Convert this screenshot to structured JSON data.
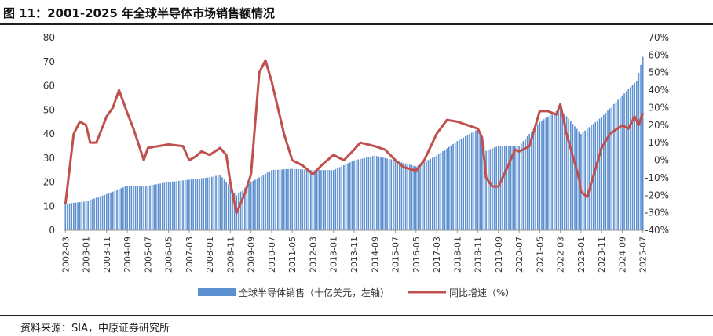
{
  "title": "图 11：2001-2025 年全球半导体市场销售额情况",
  "source": "资料来源：SIA，中原证券研究所",
  "colors": {
    "bars": "#5b8fcf",
    "line": "#c0504d"
  },
  "chart_data": {
    "type": "bar+line",
    "x_tick_labels": [
      "2002-03",
      "2003-01",
      "2003-11",
      "2004-09",
      "2005-07",
      "2006-05",
      "2007-03",
      "2008-01",
      "2008-11",
      "2009-09",
      "2010-07",
      "2011-05",
      "2012-03",
      "2013-01",
      "2013-11",
      "2014-09",
      "2015-07",
      "2016-05",
      "2017-03",
      "2018-01",
      "2018-11",
      "2019-09",
      "2020-07",
      "2021-05",
      "2022-03",
      "2023-01",
      "2023-11",
      "2024-09",
      "2025-07"
    ],
    "y_left": {
      "ticks": [
        "0",
        "10",
        "20",
        "30",
        "40",
        "50",
        "60",
        "70",
        "80"
      ],
      "range": [
        0,
        80
      ]
    },
    "y_right": {
      "ticks": [
        "-40%",
        "-30%",
        "-20%",
        "-10%",
        "0%",
        "10%",
        "20%",
        "30%",
        "40%",
        "50%",
        "60%",
        "70%"
      ],
      "range": [
        -40,
        70
      ]
    },
    "legend_position": "bottom",
    "series": [
      {
        "name": "全球半导体销售（十亿美元，左轴）",
        "type": "bar",
        "axis": "left",
        "anchors": [
          [
            "2002-03",
            11
          ],
          [
            "2003-01",
            12
          ],
          [
            "2003-11",
            15
          ],
          [
            "2004-09",
            18.5
          ],
          [
            "2005-07",
            18.5
          ],
          [
            "2006-05",
            20
          ],
          [
            "2007-03",
            21
          ],
          [
            "2008-01",
            22
          ],
          [
            "2008-06",
            23
          ],
          [
            "2008-11",
            18
          ],
          [
            "2009-02",
            14.5
          ],
          [
            "2009-09",
            20
          ],
          [
            "2010-07",
            25
          ],
          [
            "2011-05",
            25.5
          ],
          [
            "2012-03",
            25
          ],
          [
            "2013-01",
            25
          ],
          [
            "2013-11",
            29
          ],
          [
            "2014-09",
            31
          ],
          [
            "2015-07",
            29
          ],
          [
            "2016-05",
            26.5
          ],
          [
            "2017-03",
            31
          ],
          [
            "2018-01",
            37
          ],
          [
            "2018-11",
            42
          ],
          [
            "2019-03",
            33
          ],
          [
            "2019-09",
            35
          ],
          [
            "2020-07",
            35
          ],
          [
            "2021-05",
            45
          ],
          [
            "2022-03",
            50.5
          ],
          [
            "2023-01",
            40
          ],
          [
            "2023-11",
            47
          ],
          [
            "2024-09",
            56
          ],
          [
            "2025-04",
            62
          ],
          [
            "2025-07",
            72
          ]
        ]
      },
      {
        "name": "同比增速（%）",
        "type": "line",
        "axis": "right",
        "anchors": [
          [
            "2002-03",
            -25
          ],
          [
            "2002-07",
            15
          ],
          [
            "2002-10",
            22
          ],
          [
            "2003-01",
            20
          ],
          [
            "2003-03",
            10
          ],
          [
            "2003-06",
            10
          ],
          [
            "2003-11",
            25
          ],
          [
            "2004-02",
            30
          ],
          [
            "2004-05",
            40
          ],
          [
            "2004-09",
            27
          ],
          [
            "2004-12",
            18
          ],
          [
            "2005-05",
            0
          ],
          [
            "2005-07",
            7
          ],
          [
            "2006-05",
            9
          ],
          [
            "2006-12",
            8
          ],
          [
            "2007-03",
            0
          ],
          [
            "2007-06",
            2
          ],
          [
            "2007-09",
            5
          ],
          [
            "2008-01",
            3
          ],
          [
            "2008-06",
            7
          ],
          [
            "2008-09",
            3
          ],
          [
            "2008-11",
            -13
          ],
          [
            "2009-02",
            -30
          ],
          [
            "2009-06",
            -19
          ],
          [
            "2009-09",
            -8
          ],
          [
            "2010-01",
            50
          ],
          [
            "2010-04",
            57
          ],
          [
            "2010-07",
            45
          ],
          [
            "2011-01",
            15
          ],
          [
            "2011-05",
            0
          ],
          [
            "2011-10",
            -3
          ],
          [
            "2012-03",
            -8
          ],
          [
            "2012-08",
            -2
          ],
          [
            "2013-01",
            3
          ],
          [
            "2013-06",
            0
          ],
          [
            "2013-11",
            6
          ],
          [
            "2014-02",
            10
          ],
          [
            "2014-09",
            8
          ],
          [
            "2015-02",
            6
          ],
          [
            "2015-07",
            0
          ],
          [
            "2015-11",
            -4
          ],
          [
            "2016-05",
            -6
          ],
          [
            "2016-09",
            0
          ],
          [
            "2017-03",
            15
          ],
          [
            "2017-08",
            23
          ],
          [
            "2018-01",
            22
          ],
          [
            "2018-06",
            20
          ],
          [
            "2018-11",
            18
          ],
          [
            "2019-01",
            13
          ],
          [
            "2019-03",
            -10
          ],
          [
            "2019-06",
            -15
          ],
          [
            "2019-09",
            -15
          ],
          [
            "2020-01",
            -5
          ],
          [
            "2020-05",
            6
          ],
          [
            "2020-07",
            5
          ],
          [
            "2020-12",
            8
          ],
          [
            "2021-05",
            28
          ],
          [
            "2021-09",
            28
          ],
          [
            "2022-01",
            26
          ],
          [
            "2022-03",
            32
          ],
          [
            "2022-06",
            15
          ],
          [
            "2022-12",
            -10
          ],
          [
            "2023-01",
            -18
          ],
          [
            "2023-04",
            -21
          ],
          [
            "2023-11",
            7
          ],
          [
            "2024-03",
            15
          ],
          [
            "2024-09",
            20
          ],
          [
            "2024-12",
            18
          ],
          [
            "2025-03",
            25
          ],
          [
            "2025-05",
            20
          ],
          [
            "2025-07",
            27
          ]
        ]
      }
    ]
  }
}
